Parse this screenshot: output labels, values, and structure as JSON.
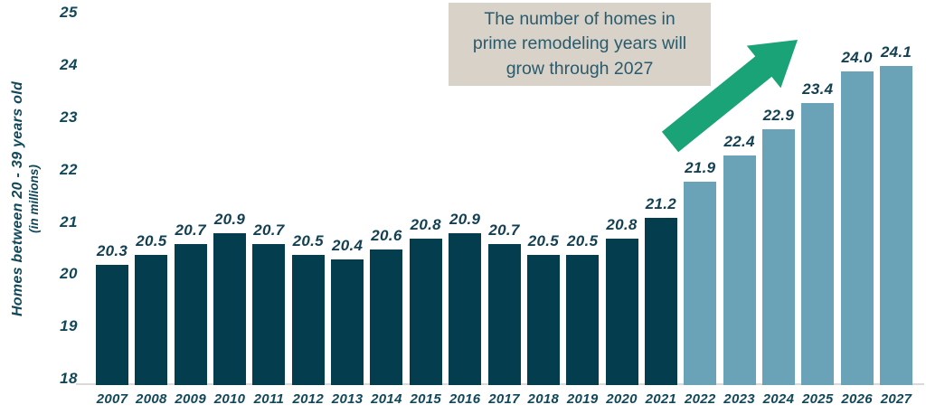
{
  "annotation": {
    "text": "The number of homes in\nprime remodeling years will\ngrow through 2027"
  },
  "y_axis": {
    "label_line1": "Homes between 20 - 39 years old",
    "label_line2": "(in millions)"
  },
  "chart_data": {
    "type": "bar",
    "title": "The number of homes in prime remodeling years will grow through 2027",
    "xlabel": "",
    "ylabel": "Homes between 20 - 39 years old (in millions)",
    "categories": [
      "2007",
      "2008",
      "2009",
      "2010",
      "2011",
      "2012",
      "2013",
      "2014",
      "2015",
      "2016",
      "2017",
      "2018",
      "2019",
      "2020",
      "2021",
      "2022",
      "2023",
      "2024",
      "2025",
      "2026",
      "2027"
    ],
    "values": [
      20.3,
      20.5,
      20.7,
      20.9,
      20.7,
      20.5,
      20.4,
      20.6,
      20.8,
      20.9,
      20.7,
      20.5,
      20.5,
      20.8,
      21.2,
      21.9,
      22.4,
      22.9,
      23.4,
      24.0,
      24.1
    ],
    "value_labels": [
      "20.3",
      "20.5",
      "20.7",
      "20.9",
      "20.7",
      "20.5",
      "20.4",
      "20.6",
      "20.8",
      "20.9",
      "20.7",
      "20.5",
      "20.5",
      "20.8",
      "21.2",
      "21.9",
      "22.4",
      "22.9",
      "23.4",
      "24.0",
      "24.1"
    ],
    "projected_from_category": "2022",
    "ylim": [
      18,
      25
    ],
    "yticks": [
      "18",
      "19",
      "20",
      "21",
      "22",
      "23",
      "24",
      "25"
    ],
    "grid": false,
    "legend": "none",
    "colors": {
      "bar_historical": "#043D4D",
      "bar_projected": "#6AA3B8",
      "label_text": "#10475A",
      "value_text": "#123F52",
      "axis_line": "#D9D9D9",
      "arrow_green": "#19A377",
      "annotation_bg": "#D8D2C8",
      "annotation_text": "#2A5B6C"
    }
  }
}
